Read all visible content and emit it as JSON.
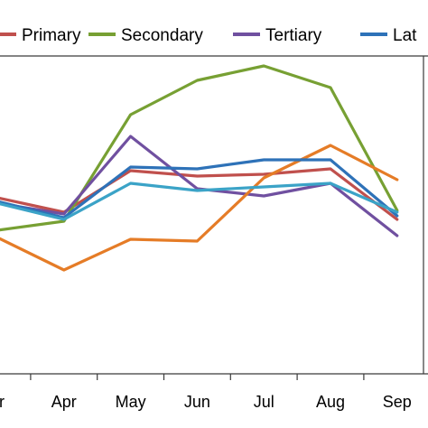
{
  "chart_data": {
    "type": "line",
    "categories": [
      "Mar",
      "Apr",
      "May",
      "Jun",
      "Jul",
      "Aug",
      "Sep"
    ],
    "x_labels_visible": [
      "ar",
      "Apr",
      "May",
      "Jun",
      "Jul",
      "Aug",
      "Sep"
    ],
    "legend_position": "top",
    "grid": false,
    "series": [
      {
        "name": "Primary",
        "color": "#c0504d",
        "values": [
          0.55,
          0.47,
          0.7,
          0.67,
          0.68,
          0.71,
          0.43
        ]
      },
      {
        "name": "Secondary",
        "color": "#77a033",
        "values": [
          0.37,
          0.42,
          1.01,
          1.2,
          1.28,
          1.16,
          0.48
        ]
      },
      {
        "name": "Tertiary",
        "color": "#7050a0",
        "values": [
          0.52,
          0.46,
          0.89,
          0.6,
          0.56,
          0.63,
          0.34
        ]
      },
      {
        "name": "Lat",
        "color": "#e57c27",
        "values": [
          0.33,
          0.15,
          0.32,
          0.31,
          0.66,
          0.84,
          0.65
        ]
      },
      {
        "name": "",
        "color": "#2e72b8",
        "values": [
          0.53,
          0.44,
          0.72,
          0.71,
          0.76,
          0.76,
          0.45
        ]
      },
      {
        "name": "",
        "color": "#3ba3c7",
        "values": [
          0.52,
          0.43,
          0.63,
          0.59,
          0.61,
          0.63,
          0.47
        ]
      }
    ]
  }
}
